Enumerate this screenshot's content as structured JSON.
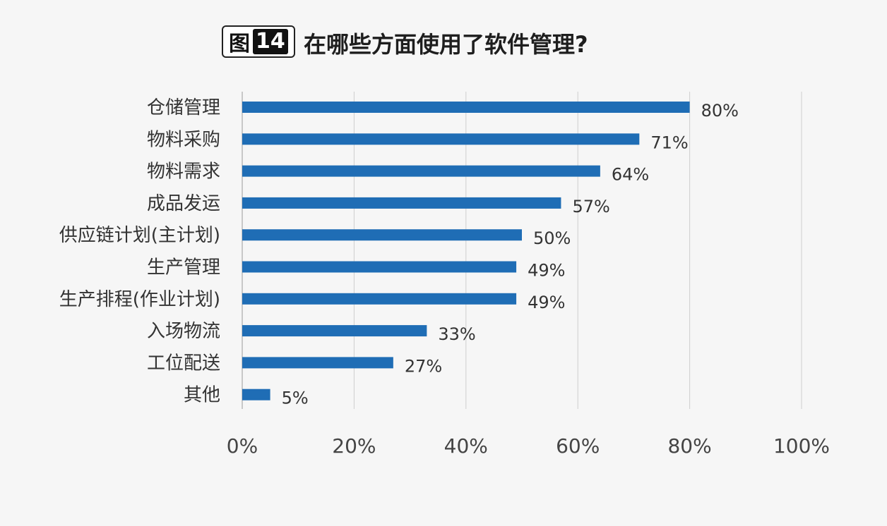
{
  "header": {
    "fig_char": "图",
    "fig_num": "14",
    "title": "在哪些方面使用了软件管理?"
  },
  "chart_data": {
    "type": "bar",
    "orientation": "horizontal",
    "title": "在哪些方面使用了软件管理?",
    "xlabel": "",
    "ylabel": "",
    "categories": [
      "仓储管理",
      "物料采购",
      "物料需求",
      "成品发运",
      "供应链计划(主计划)",
      "生产管理",
      "生产排程(作业计划)",
      "入场物流",
      "工位配送",
      "其他"
    ],
    "values": [
      80,
      71,
      64,
      57,
      50,
      49,
      49,
      33,
      27,
      5
    ],
    "value_labels": [
      "80%",
      "71%",
      "64%",
      "57%",
      "50%",
      "49%",
      "49%",
      "33%",
      "27%",
      "5%"
    ],
    "xlim": [
      0,
      100
    ],
    "x_ticks": [
      0,
      20,
      40,
      60,
      80,
      100
    ],
    "x_tick_labels": [
      "0%",
      "20%",
      "40%",
      "60%",
      "80%",
      "100%"
    ],
    "bar_color": "#1f6db5",
    "grid": true,
    "legend": "none"
  }
}
